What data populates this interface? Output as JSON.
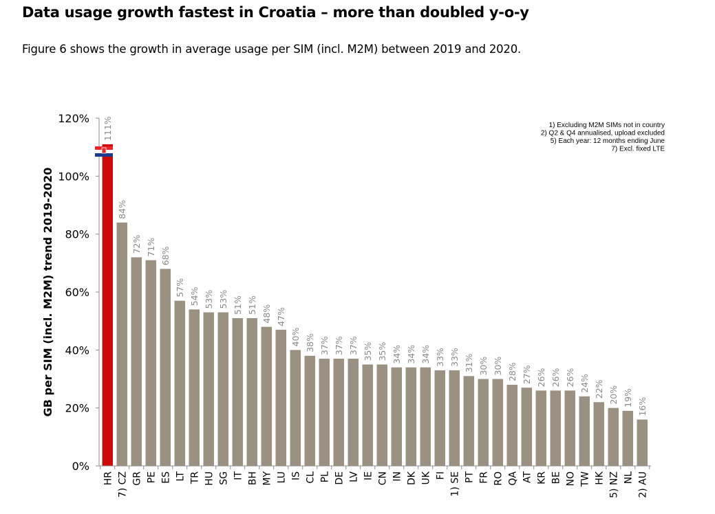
{
  "header": {
    "title": "Data usage growth fastest in Croatia – more than doubled y-o-y",
    "subtitle": "Figure 6 shows the growth in average usage per SIM (incl. M2M) between 2019 and 2020."
  },
  "colors": {
    "highlight_bar": "#cc0a0a",
    "default_bar": "#9b9182",
    "axis": "#8c8c8c",
    "data_label": "#8a8a8a"
  },
  "chart_data": {
    "type": "bar",
    "title": "",
    "xlabel": "",
    "ylabel": "GB per SIM (incl. M2M) trend 2019-2020",
    "ylim": [
      0,
      120
    ],
    "yticks": [
      0,
      20,
      40,
      60,
      80,
      100,
      120
    ],
    "ytick_labels": [
      "0%",
      "20%",
      "40%",
      "60%",
      "80%",
      "100%",
      "120%"
    ],
    "grid": false,
    "highlight": "HR",
    "highlight_marker": "croatia-flag",
    "categories": [
      "HR",
      "7) CZ",
      "GR",
      "PE",
      "ES",
      "LT",
      "TR",
      "HU",
      "SG",
      "IT",
      "BH",
      "MY",
      "LU",
      "IS",
      "CL",
      "PL",
      "DE",
      "LV",
      "IE",
      "CN",
      "IN",
      "DK",
      "UK",
      "FI",
      "1) SE",
      "PT",
      "FR",
      "RO",
      "QA",
      "AT",
      "KR",
      "BE",
      "NO",
      "TW",
      "HK",
      "5) NZ",
      "NL",
      "2) AU"
    ],
    "values": [
      111,
      84,
      72,
      71,
      68,
      57,
      54,
      53,
      53,
      51,
      51,
      48,
      47,
      40,
      38,
      37,
      37,
      37,
      35,
      35,
      34,
      34,
      34,
      33,
      33,
      31,
      30,
      30,
      28,
      27,
      26,
      26,
      26,
      24,
      22,
      20,
      19,
      16
    ],
    "data_labels": [
      "111%",
      "84%",
      "72%",
      "71%",
      "68%",
      "57%",
      "54%",
      "53%",
      "53%",
      "51%",
      "51%",
      "48%",
      "47%",
      "40%",
      "38%",
      "37%",
      "37%",
      "37%",
      "35%",
      "35%",
      "34%",
      "34%",
      "34%",
      "33%",
      "33%",
      "31%",
      "30%",
      "30%",
      "28%",
      "27%",
      "26%",
      "26%",
      "26%",
      "24%",
      "22%",
      "20%",
      "19%",
      "16%"
    ],
    "annotations": [
      "1) Excluding M2M SIMs not in country",
      "2) Q2 & Q4 annualised, upload excluded",
      "5) Each year: 12 months ending June",
      "7) Excl. fixed LTE"
    ]
  }
}
